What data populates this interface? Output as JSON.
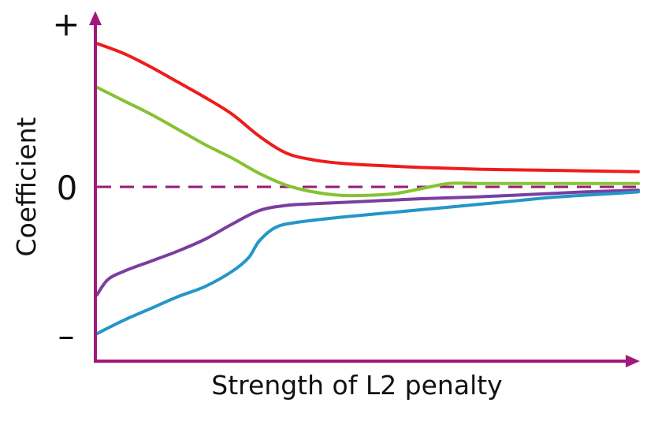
{
  "chart_data": {
    "type": "line",
    "title": "",
    "xlabel": "Strength of L2 penalty",
    "ylabel": "Coefficient",
    "y_tick_labels": {
      "top": "+",
      "zero": "0",
      "bottom": "–"
    },
    "x_range": [
      0,
      1
    ],
    "y_range": [
      -1,
      1
    ],
    "grid": false,
    "legend": "none",
    "axis_color": "#a0197a",
    "zero_line_color": "#9a1a78",
    "zero_line_style": "dashed",
    "series": [
      {
        "color": "#ee1c1c",
        "points": [
          [
            0,
            0.85
          ],
          [
            0.05,
            0.79
          ],
          [
            0.1,
            0.71
          ],
          [
            0.15,
            0.62
          ],
          [
            0.2,
            0.53
          ],
          [
            0.25,
            0.43
          ],
          [
            0.3,
            0.3
          ],
          [
            0.35,
            0.2
          ],
          [
            0.4,
            0.16
          ],
          [
            0.45,
            0.14
          ],
          [
            0.5,
            0.13
          ],
          [
            0.6,
            0.115
          ],
          [
            0.7,
            0.105
          ],
          [
            0.8,
            0.1
          ],
          [
            0.9,
            0.095
          ],
          [
            1.0,
            0.09
          ]
        ]
      },
      {
        "color": "#86c232",
        "points": [
          [
            0,
            0.59
          ],
          [
            0.05,
            0.51
          ],
          [
            0.1,
            0.43
          ],
          [
            0.15,
            0.34
          ],
          [
            0.2,
            0.25
          ],
          [
            0.25,
            0.17
          ],
          [
            0.3,
            0.08
          ],
          [
            0.35,
            0.01
          ],
          [
            0.4,
            -0.03
          ],
          [
            0.45,
            -0.05
          ],
          [
            0.5,
            -0.05
          ],
          [
            0.55,
            -0.04
          ],
          [
            0.6,
            -0.01
          ],
          [
            0.65,
            0.02
          ],
          [
            0.7,
            0.02
          ],
          [
            0.8,
            0.02
          ],
          [
            0.9,
            0.02
          ],
          [
            1.0,
            0.02
          ]
        ]
      },
      {
        "color": "#7a3ea0",
        "points": [
          [
            0,
            -0.64
          ],
          [
            0.02,
            -0.55
          ],
          [
            0.05,
            -0.5
          ],
          [
            0.1,
            -0.44
          ],
          [
            0.15,
            -0.38
          ],
          [
            0.2,
            -0.31
          ],
          [
            0.25,
            -0.22
          ],
          [
            0.3,
            -0.14
          ],
          [
            0.35,
            -0.11
          ],
          [
            0.4,
            -0.1
          ],
          [
            0.5,
            -0.085
          ],
          [
            0.6,
            -0.07
          ],
          [
            0.7,
            -0.06
          ],
          [
            0.8,
            -0.045
          ],
          [
            0.9,
            -0.03
          ],
          [
            1.0,
            -0.02
          ]
        ]
      },
      {
        "color": "#2496c8",
        "points": [
          [
            0,
            -0.87
          ],
          [
            0.05,
            -0.79
          ],
          [
            0.1,
            -0.72
          ],
          [
            0.15,
            -0.65
          ],
          [
            0.2,
            -0.59
          ],
          [
            0.25,
            -0.5
          ],
          [
            0.28,
            -0.42
          ],
          [
            0.3,
            -0.32
          ],
          [
            0.33,
            -0.24
          ],
          [
            0.37,
            -0.21
          ],
          [
            0.45,
            -0.18
          ],
          [
            0.55,
            -0.15
          ],
          [
            0.65,
            -0.12
          ],
          [
            0.75,
            -0.09
          ],
          [
            0.85,
            -0.06
          ],
          [
            0.95,
            -0.04
          ],
          [
            1.0,
            -0.03
          ]
        ]
      }
    ]
  }
}
